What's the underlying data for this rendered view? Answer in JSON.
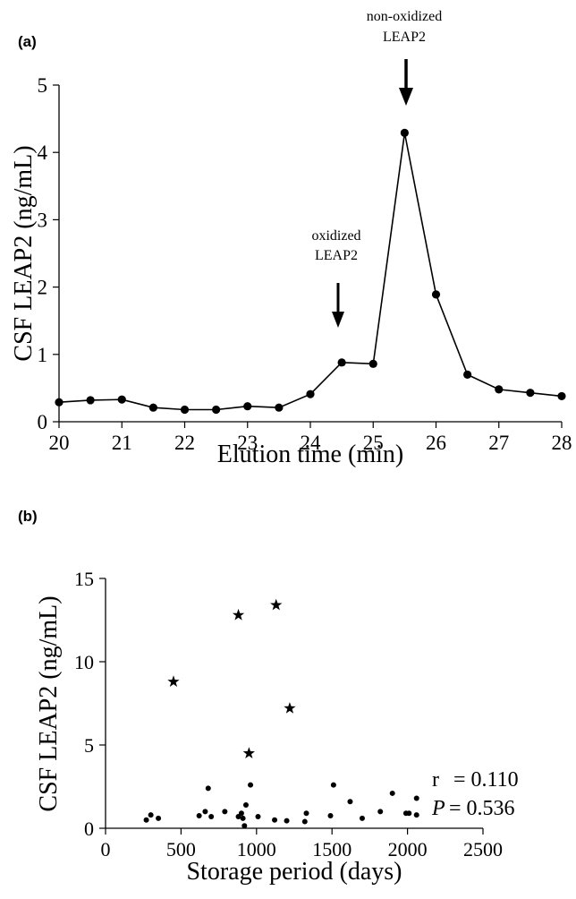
{
  "chart_data": [
    {
      "panel_label": "(a)",
      "type": "line",
      "xlabel": "Elution time (min)",
      "ylabel": "CSF LEAP2 (ng/mL)",
      "xlim": [
        20,
        28
      ],
      "ylim": [
        0,
        5
      ],
      "xticks": [
        "20",
        "21",
        "22",
        "23",
        "24",
        "25",
        "26",
        "27",
        "28"
      ],
      "yticks": [
        "0",
        "1",
        "2",
        "3",
        "4",
        "5"
      ],
      "x": [
        20,
        20.5,
        21,
        21.5,
        22,
        22.5,
        23,
        23.5,
        24,
        24.5,
        25,
        25.5,
        26,
        26.5,
        27,
        27.5,
        28
      ],
      "y": [
        0.29,
        0.32,
        0.33,
        0.21,
        0.18,
        0.18,
        0.23,
        0.21,
        0.41,
        0.88,
        0.86,
        4.29,
        1.89,
        0.7,
        0.48,
        0.43,
        0.38
      ],
      "annotations": [
        {
          "lines": [
            "oxidized",
            "LEAP2"
          ],
          "x": 24.5
        },
        {
          "lines": [
            "non-oxidized",
            "LEAP2"
          ],
          "x": 25.5
        }
      ]
    },
    {
      "panel_label": "(b)",
      "type": "scatter",
      "xlabel": "Storage period (days)",
      "ylabel": "CSF LEAP2 (ng/mL)",
      "xlim": [
        0,
        2500
      ],
      "ylim": [
        0,
        15
      ],
      "xticks": [
        "0",
        "500",
        "1000",
        "1500",
        "2000",
        "2500"
      ],
      "yticks": [
        "0",
        "5",
        "10",
        "15"
      ],
      "stars": [
        {
          "x": 450,
          "y": 8.8
        },
        {
          "x": 880,
          "y": 12.8
        },
        {
          "x": 1130,
          "y": 13.4
        },
        {
          "x": 1220,
          "y": 7.2
        },
        {
          "x": 950,
          "y": 4.5
        }
      ],
      "points": [
        {
          "x": 270,
          "y": 0.5
        },
        {
          "x": 300,
          "y": 0.8
        },
        {
          "x": 350,
          "y": 0.6
        },
        {
          "x": 620,
          "y": 0.75
        },
        {
          "x": 660,
          "y": 1.0
        },
        {
          "x": 680,
          "y": 2.4
        },
        {
          "x": 700,
          "y": 0.7
        },
        {
          "x": 790,
          "y": 1.0
        },
        {
          "x": 880,
          "y": 0.7
        },
        {
          "x": 900,
          "y": 0.9
        },
        {
          "x": 910,
          "y": 0.6
        },
        {
          "x": 920,
          "y": 0.15
        },
        {
          "x": 930,
          "y": 1.4
        },
        {
          "x": 960,
          "y": 2.6
        },
        {
          "x": 1010,
          "y": 0.7
        },
        {
          "x": 1120,
          "y": 0.5
        },
        {
          "x": 1200,
          "y": 0.45
        },
        {
          "x": 1320,
          "y": 0.4
        },
        {
          "x": 1330,
          "y": 0.9
        },
        {
          "x": 1490,
          "y": 0.75
        },
        {
          "x": 1510,
          "y": 2.6
        },
        {
          "x": 1620,
          "y": 1.6
        },
        {
          "x": 1700,
          "y": 0.6
        },
        {
          "x": 1820,
          "y": 1.0
        },
        {
          "x": 1900,
          "y": 2.1
        },
        {
          "x": 1990,
          "y": 0.9
        },
        {
          "x": 2010,
          "y": 0.9
        },
        {
          "x": 2060,
          "y": 1.8
        },
        {
          "x": 2060,
          "y": 0.8
        }
      ],
      "stats": {
        "r_label": "r",
        "r_value": "= 0.110",
        "p_label": "P",
        "p_value": "= 0.536"
      }
    }
  ]
}
